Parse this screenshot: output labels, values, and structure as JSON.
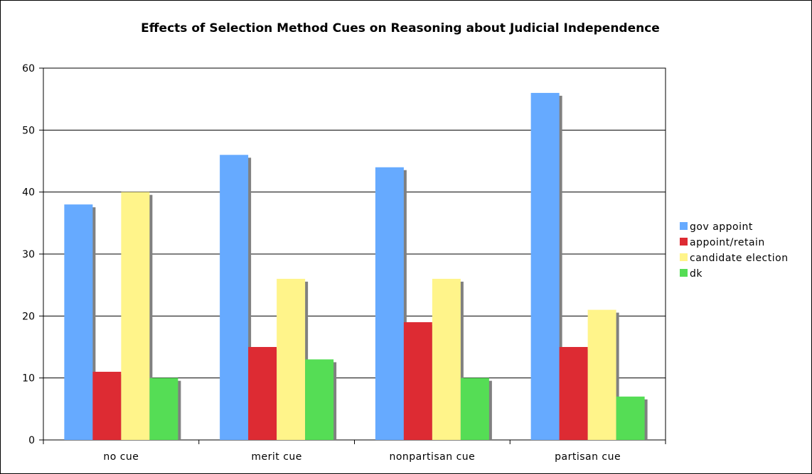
{
  "chart_data": {
    "type": "bar",
    "title": "Effects of Selection Method Cues on Reasoning about Judicial Independence",
    "xlabel": "",
    "ylabel": "",
    "categories": [
      "no cue",
      "merit cue",
      "nonpartisan cue",
      "partisan cue"
    ],
    "ylim": [
      0,
      60
    ],
    "yticks": [
      "0",
      "10",
      "20",
      "30",
      "40",
      "50",
      "60"
    ],
    "grid": true,
    "legend_position": "right",
    "series": [
      {
        "name": "gov appoint",
        "color": "#66aaff",
        "values": [
          38,
          46,
          44,
          56
        ]
      },
      {
        "name": "appoint/retain",
        "color": "#dd2b33",
        "values": [
          11,
          15,
          19,
          15
        ]
      },
      {
        "name": "candidate election",
        "color": "#fff48a",
        "values": [
          40,
          26,
          26,
          21
        ]
      },
      {
        "name": "dk",
        "color": "#55dd55",
        "values": [
          10,
          13,
          10,
          7
        ]
      }
    ]
  }
}
